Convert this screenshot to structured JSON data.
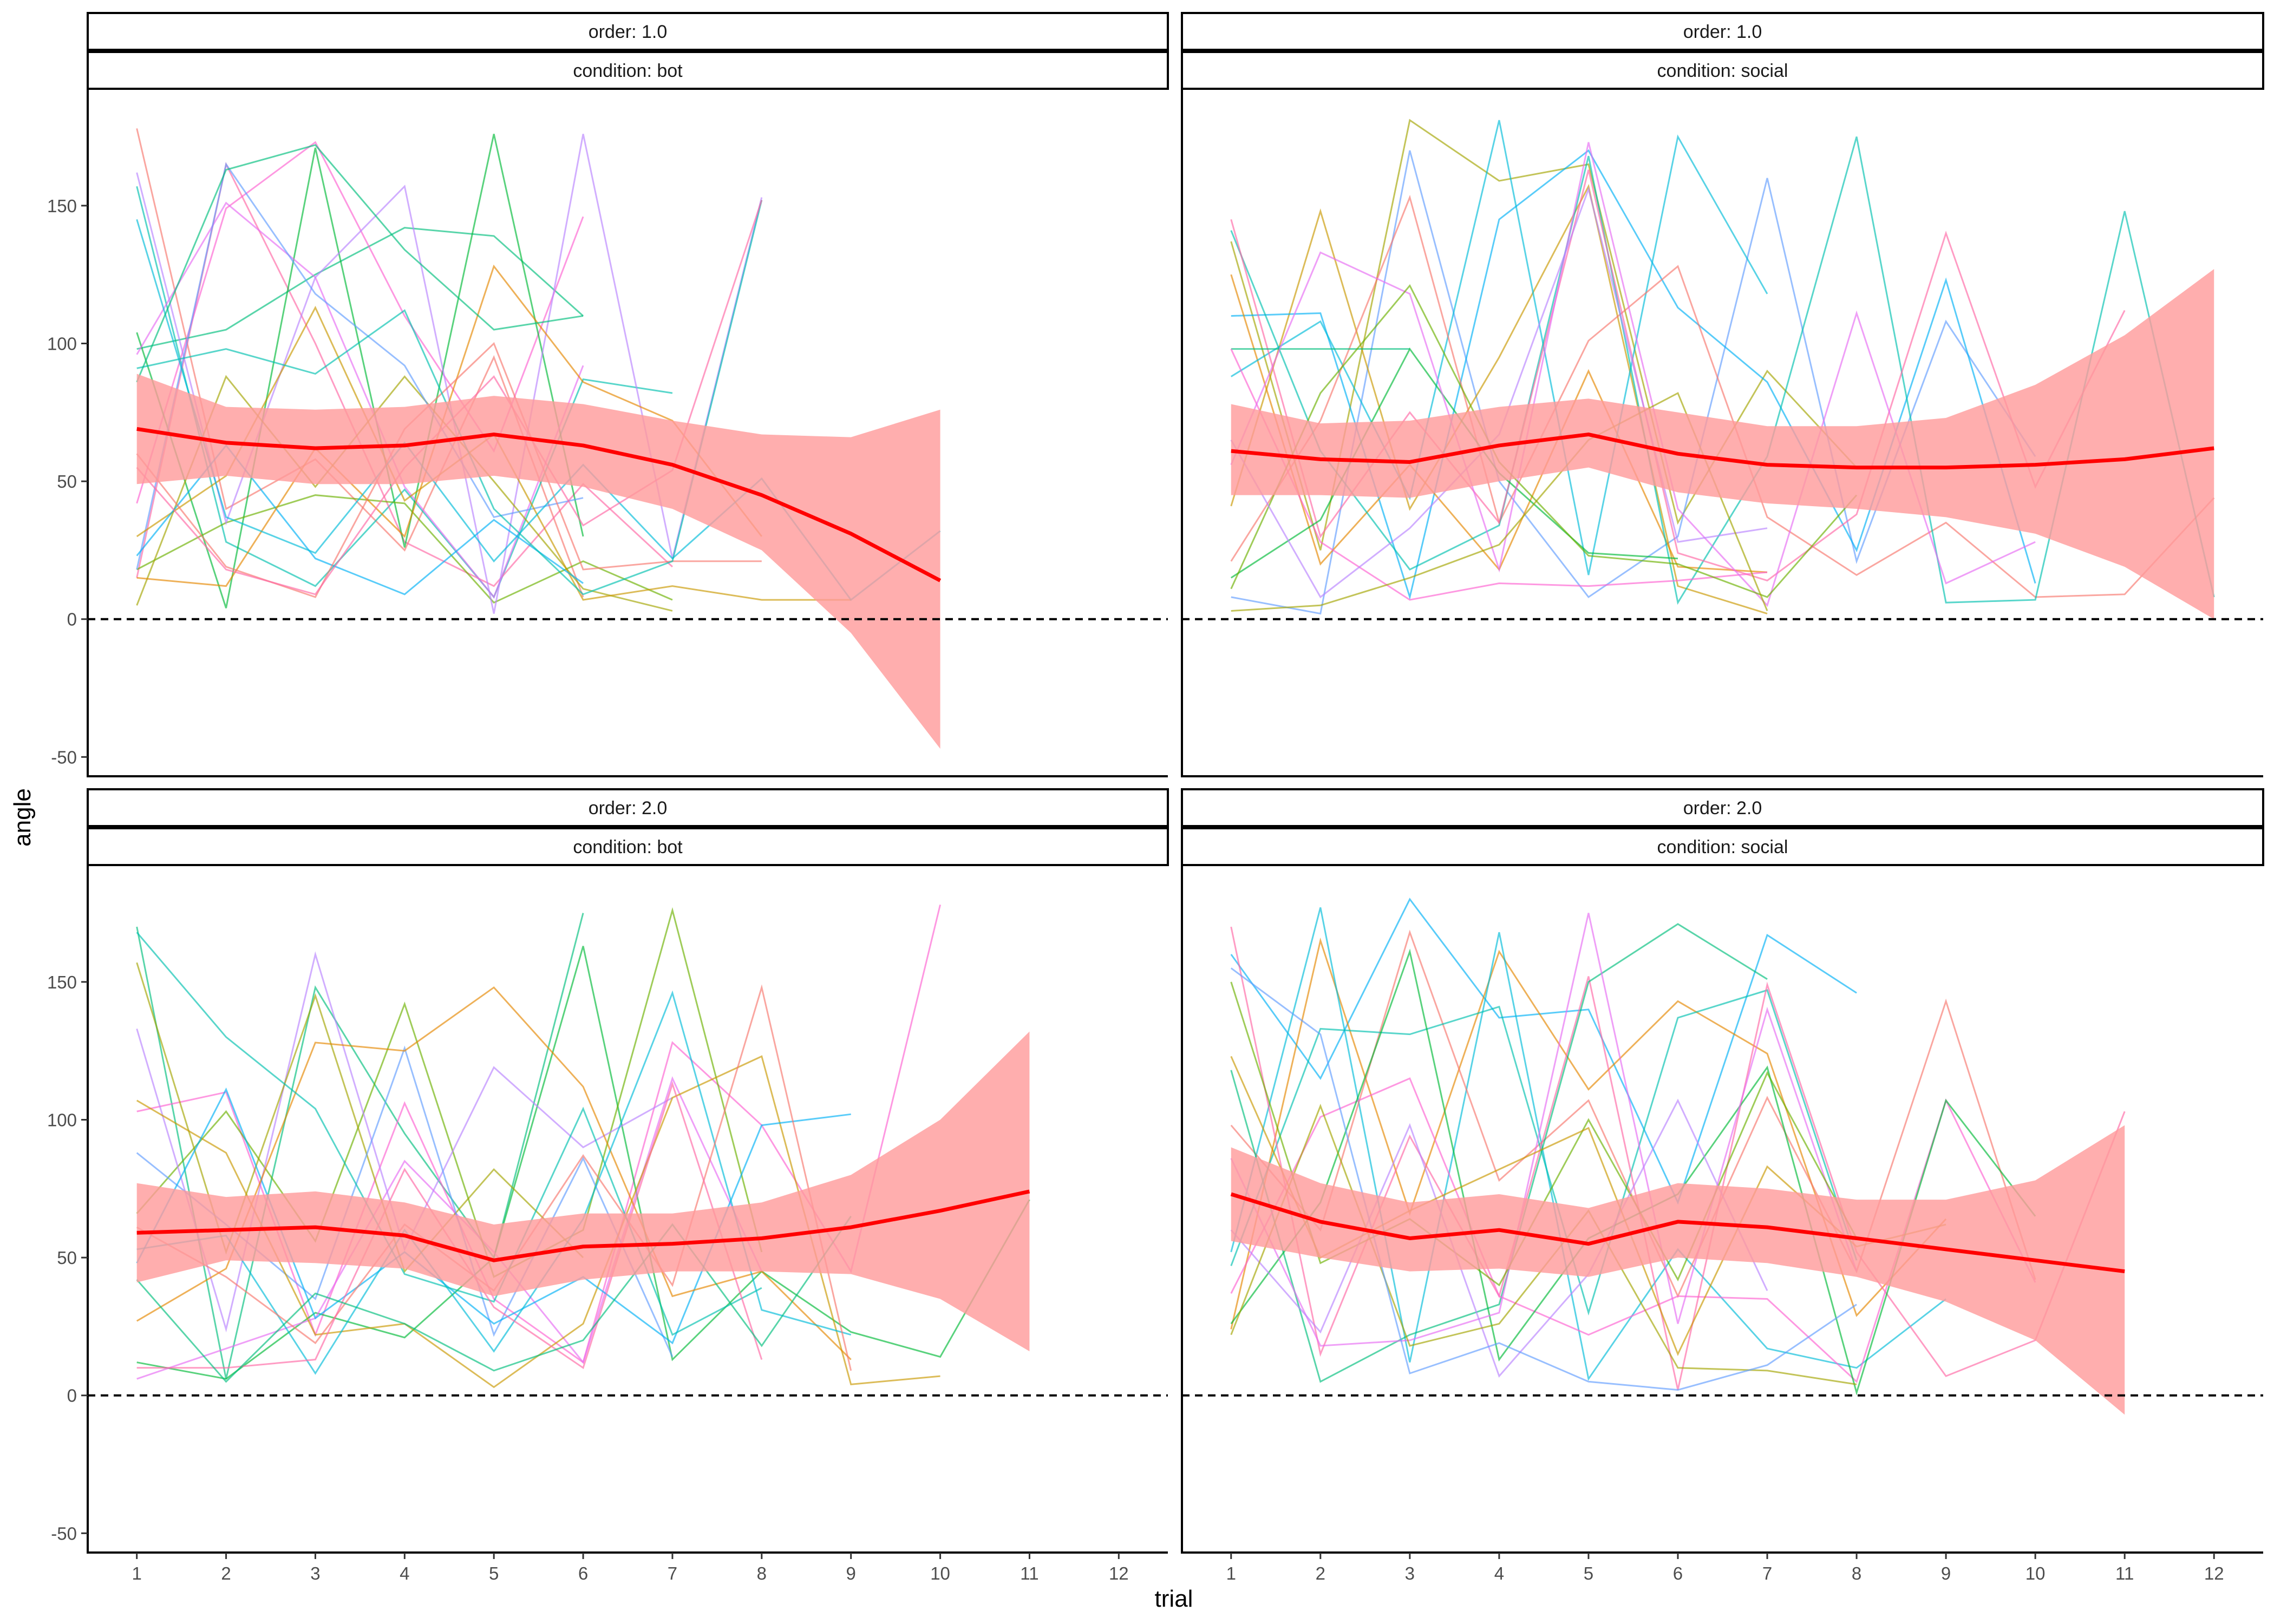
{
  "chart_data": {
    "type": "line",
    "facet_rows": "order",
    "facet_cols": "condition",
    "xlabel": "trial",
    "ylabel": "angle",
    "xlim": [
      0.45,
      12.55
    ],
    "ylim": [
      -57,
      192
    ],
    "x_ticks": [
      1,
      2,
      3,
      4,
      5,
      6,
      7,
      8,
      9,
      10,
      11,
      12
    ],
    "y_ticks": [
      -50,
      0,
      50,
      100,
      150
    ],
    "reference_line": {
      "y": 0,
      "style": "dashed"
    },
    "grid": false,
    "legend": "none",
    "smooth_color": "#ff0000",
    "ribbon_color": "#ff9a9a",
    "line_palette": [
      "#F8766D",
      "#E58700",
      "#C99800",
      "#A3A500",
      "#6BB100",
      "#00BA38",
      "#00BF7D",
      "#00C0AF",
      "#00BCD8",
      "#00B0F6",
      "#619CFF",
      "#B983FF",
      "#E76BF3",
      "#FD61D1",
      "#FF67A4"
    ],
    "panels": [
      {
        "order_label": "order: 1.0",
        "condition_label": "condition: bot",
        "smooth": {
          "x": [
            1,
            2,
            3,
            4,
            5,
            6,
            7,
            8,
            9,
            10
          ],
          "y": [
            69,
            64,
            62,
            63,
            67,
            63,
            56,
            45,
            31,
            14
          ],
          "lower": [
            49,
            52,
            49,
            49,
            52,
            48,
            40,
            25,
            -5,
            -47
          ],
          "upper": [
            89,
            77,
            76,
            77,
            81,
            78,
            72,
            67,
            66,
            76
          ]
        },
        "subjects": [
          [
            178,
            40,
            58,
            25,
            95,
            8
          ],
          [
            157,
            28,
            12,
            47,
            8,
            87,
            82
          ],
          [
            15,
            165,
            100,
            28,
            12,
            49,
            19
          ],
          [
            98,
            105,
            125,
            142,
            139,
            110
          ],
          [
            42,
            149,
            173,
            110,
            61,
            146
          ],
          [
            104,
            4,
            171,
            26,
            176,
            30
          ],
          [
            96,
            151,
            124,
            48,
            8,
            92
          ],
          [
            18,
            35,
            45,
            42,
            6,
            21,
            7
          ],
          [
            162,
            35,
            124,
            157,
            2,
            176,
            22,
            153
          ],
          [
            5,
            88,
            48,
            88,
            50,
            11,
            3
          ],
          [
            18,
            165,
            118,
            92,
            37,
            44
          ],
          [
            30,
            52,
            113,
            43,
            67,
            7,
            12,
            7,
            7
          ],
          [
            23,
            63,
            22,
            9,
            36,
            13
          ],
          [
            15,
            12,
            62,
            30,
            128,
            86,
            72,
            30
          ],
          [
            145,
            37,
            24,
            64,
            21,
            56,
            22,
            51,
            7,
            32
          ],
          [
            60,
            19,
            8,
            69,
            100,
            18,
            21,
            21
          ],
          [
            91,
            98,
            89,
            112,
            40,
            9,
            21,
            152
          ],
          [
            55,
            18,
            9,
            55,
            88,
            34,
            54,
            152
          ],
          [
            86,
            163,
            172,
            134,
            105,
            110
          ]
        ]
      },
      {
        "order_label": "order: 1.0",
        "condition_label": "condition: social",
        "smooth": {
          "x": [
            1,
            2,
            3,
            4,
            5,
            6,
            7,
            8,
            9,
            10,
            11,
            12
          ],
          "y": [
            61,
            58,
            57,
            63,
            67,
            60,
            56,
            55,
            55,
            56,
            58,
            62
          ],
          "lower": [
            45,
            45,
            44,
            50,
            55,
            46,
            42,
            40,
            37,
            31,
            19,
            0
          ],
          "upper": [
            78,
            71,
            72,
            77,
            80,
            75,
            70,
            70,
            73,
            85,
            103,
            127
          ]
        },
        "subjects": [
          [
            137,
            25,
            181,
            159,
            165,
            35,
            90,
            55
          ],
          [
            8,
            2,
            170,
            50,
            8,
            30,
            160,
            21,
            108,
            59
          ],
          [
            41,
            148,
            40,
            95,
            157,
            12,
            2
          ],
          [
            110,
            111,
            8,
            145,
            170,
            113,
            86,
            25,
            123,
            13
          ],
          [
            125,
            20,
            56,
            18,
            90,
            19,
            17
          ],
          [
            88,
            108,
            44,
            181,
            16,
            175,
            118
          ],
          [
            21,
            72,
            153,
            35,
            101,
            128,
            37,
            16,
            35,
            8,
            9,
            44
          ],
          [
            141,
            61,
            18,
            34,
            168,
            6,
            59,
            175,
            6,
            7,
            148,
            8
          ],
          [
            145,
            30,
            75,
            35,
            163,
            24,
            14,
            38,
            140,
            48,
            112
          ],
          [
            98,
            98,
            98
          ],
          [
            98,
            28,
            7,
            13,
            12,
            14,
            17
          ],
          [
            15,
            36,
            98,
            53,
            24,
            22
          ],
          [
            56,
            133,
            118,
            18,
            173,
            40,
            5,
            111,
            13,
            28
          ],
          [
            11,
            82,
            121,
            57,
            23,
            20,
            8,
            45
          ],
          [
            65,
            8,
            33,
            67,
            156,
            28,
            33
          ],
          [
            3,
            5,
            15,
            27,
            65,
            82,
            3
          ]
        ]
      },
      {
        "order_label": "order: 2.0",
        "condition_label": "condition: bot",
        "smooth": {
          "x": [
            1,
            2,
            3,
            4,
            5,
            6,
            7,
            8,
            9,
            10,
            11
          ],
          "y": [
            59,
            60,
            61,
            58,
            49,
            54,
            55,
            57,
            61,
            67,
            74
          ],
          "lower": [
            41,
            49,
            48,
            46,
            36,
            42,
            45,
            45,
            44,
            35,
            16
          ],
          "upper": [
            77,
            72,
            74,
            70,
            62,
            66,
            66,
            70,
            80,
            100,
            132
          ]
        },
        "subjects": [
          [
            170,
            6,
            148,
            95,
            50,
            175
          ],
          [
            103,
            110,
            22,
            106,
            35,
            12,
            128,
            98,
            45,
            178
          ],
          [
            12,
            6,
            30,
            21,
            50,
            163,
            13,
            45,
            23,
            14,
            71
          ],
          [
            6,
            17,
            28,
            85,
            52,
            12,
            115,
            45
          ],
          [
            66,
            103,
            56,
            142,
            43,
            60,
            176,
            52
          ],
          [
            133,
            24,
            160,
            53,
            119,
            90,
            108
          ],
          [
            157,
            52,
            145,
            45,
            82,
            50
          ],
          [
            88,
            62,
            35,
            126,
            22,
            86,
            14
          ],
          [
            107,
            88,
            22,
            26,
            3,
            26,
            108,
            123,
            4,
            7
          ],
          [
            48,
            111,
            28,
            52,
            26,
            43,
            19,
            98,
            102
          ],
          [
            27,
            46,
            128,
            125,
            148,
            112,
            36,
            45,
            13
          ],
          [
            53,
            58,
            8,
            60,
            16,
            64,
            146,
            31,
            22
          ],
          [
            61,
            43,
            19,
            62,
            38,
            87,
            40,
            148,
            9
          ],
          [
            168,
            130,
            104,
            44,
            34,
            104,
            22,
            39
          ],
          [
            10,
            10,
            13,
            82,
            32,
            10,
            113,
            13
          ],
          [
            42,
            5,
            37,
            26,
            9,
            20,
            62,
            18,
            65
          ]
        ]
      },
      {
        "order_label": "order: 2.0",
        "condition_label": "condition: social",
        "smooth": {
          "x": [
            1,
            2,
            3,
            4,
            5,
            6,
            7,
            8,
            9,
            10,
            11
          ],
          "y": [
            73,
            63,
            57,
            60,
            55,
            63,
            61,
            57,
            53,
            49,
            45
          ],
          "lower": [
            56,
            50,
            45,
            46,
            43,
            50,
            48,
            43,
            34,
            20,
            -7
          ],
          "upper": [
            90,
            77,
            70,
            73,
            68,
            77,
            75,
            71,
            71,
            78,
            98
          ]
        },
        "subjects": [
          [
            160,
            115,
            180,
            137,
            140,
            70,
            167,
            146
          ],
          [
            24,
            165,
            66,
            161,
            111,
            143,
            124,
            29,
            64
          ],
          [
            52,
            177,
            12,
            168,
            6,
            53,
            17,
            10,
            35
          ],
          [
            98,
            60,
            168,
            78,
            107,
            36,
            108,
            45,
            143,
            42
          ],
          [
            47,
            133,
            131,
            141,
            30,
            137,
            147,
            49
          ],
          [
            170,
            15,
            94,
            36,
            152,
            2,
            149,
            52,
            7,
            20,
            103
          ],
          [
            118,
            5,
            22,
            33,
            150,
            171,
            151
          ],
          [
            37,
            101,
            115,
            36,
            22,
            36,
            35,
            5,
            107,
            41
          ],
          [
            26,
            70,
            161,
            13,
            57,
            73,
            119,
            1,
            107,
            65
          ],
          [
            86,
            18,
            20,
            30,
            175,
            26,
            140,
            45
          ],
          [
            150,
            48,
            64,
            40,
            100,
            42,
            117,
            57
          ],
          [
            60,
            23,
            98,
            7,
            44,
            107,
            38
          ],
          [
            22,
            105,
            18,
            26,
            67,
            10,
            9,
            4
          ],
          [
            155,
            131,
            8,
            19,
            5,
            2,
            11,
            33
          ],
          [
            123,
            50,
            67,
            82,
            97,
            15,
            83,
            54,
            62
          ]
        ]
      }
    ]
  }
}
